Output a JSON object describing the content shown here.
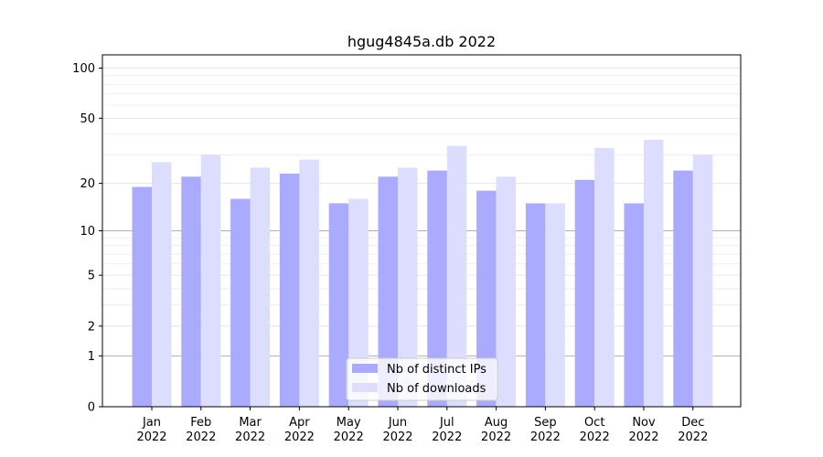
{
  "chart_data": {
    "type": "bar",
    "title": "hgug4845a.db 2022",
    "xlabel": "",
    "ylabel": "",
    "yscale": "symlog",
    "ylim": [
      0,
      120
    ],
    "y_ticks": [
      0,
      1,
      2,
      5,
      10,
      20,
      50,
      100
    ],
    "categories": [
      {
        "month": "Jan",
        "year": "2022"
      },
      {
        "month": "Feb",
        "year": "2022"
      },
      {
        "month": "Mar",
        "year": "2022"
      },
      {
        "month": "Apr",
        "year": "2022"
      },
      {
        "month": "May",
        "year": "2022"
      },
      {
        "month": "Jun",
        "year": "2022"
      },
      {
        "month": "Jul",
        "year": "2022"
      },
      {
        "month": "Aug",
        "year": "2022"
      },
      {
        "month": "Sep",
        "year": "2022"
      },
      {
        "month": "Oct",
        "year": "2022"
      },
      {
        "month": "Nov",
        "year": "2022"
      },
      {
        "month": "Dec",
        "year": "2022"
      }
    ],
    "series": [
      {
        "name": "Nb of distinct IPs",
        "color": "#aaaaff",
        "values": [
          19,
          22,
          16,
          23,
          15,
          22,
          24,
          18,
          15,
          21,
          15,
          24
        ]
      },
      {
        "name": "Nb of downloads",
        "color": "#ddddff",
        "values": [
          27,
          30,
          25,
          28,
          16,
          25,
          34,
          22,
          15,
          33,
          37,
          30
        ]
      }
    ],
    "grid": "horizontal",
    "legend_position": "bottom-center"
  }
}
